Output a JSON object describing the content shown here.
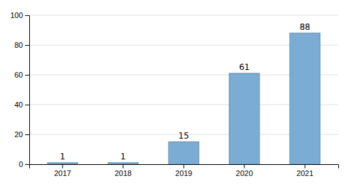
{
  "chart_data": {
    "type": "bar",
    "categories": [
      "2017",
      "2018",
      "2019",
      "2020",
      "2021"
    ],
    "values": [
      1,
      1,
      15,
      61,
      88
    ],
    "color": "#7BADD4",
    "ylim": [
      0,
      100
    ],
    "yticks": [
      0,
      20,
      40,
      60,
      80,
      100
    ],
    "grid": true,
    "data_labels": true
  }
}
